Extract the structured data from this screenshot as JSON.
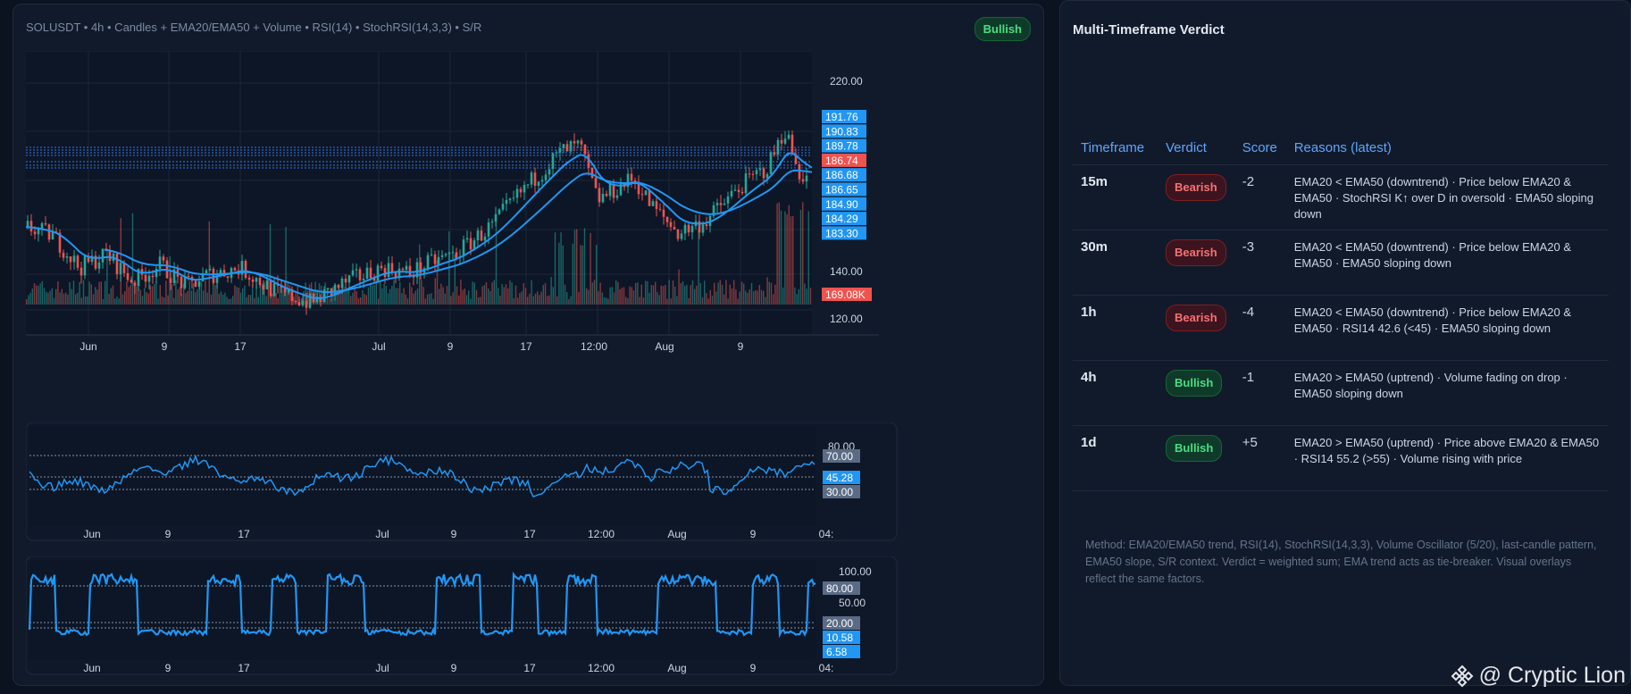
{
  "chart": {
    "title": "SOLUSDT • 4h • Candles + EMA20/EMA50 + Volume • RSI(14) • StochRSI(14,3,3) • S/R",
    "badge": "Bullish",
    "price_axis": [
      "220.00",
      "140.00",
      "120.00"
    ],
    "level_labels": [
      {
        "text": "191.76",
        "color": "#2196f3"
      },
      {
        "text": "190.83",
        "color": "#2196f3"
      },
      {
        "text": "189.78",
        "color": "#2196f3"
      },
      {
        "text": "186.74",
        "color": "#ef5350"
      },
      {
        "text": "186.68",
        "color": "#2196f3"
      },
      {
        "text": "186.65",
        "color": "#2196f3"
      },
      {
        "text": "184.90",
        "color": "#2196f3"
      },
      {
        "text": "184.29",
        "color": "#2196f3"
      },
      {
        "text": "183.30",
        "color": "#2196f3"
      }
    ],
    "volume_label": "169.08K",
    "x_ticks": [
      "Jun",
      "9",
      "17",
      "Jul",
      "9",
      "17",
      "12:00",
      "Aug",
      "9"
    ],
    "rsi": {
      "axis_top": "80.00",
      "labels": [
        "70.00",
        "45.28",
        "30.00"
      ],
      "x_ticks": [
        "Jun",
        "9",
        "17",
        "Jul",
        "9",
        "17",
        "12:00",
        "Aug",
        "9",
        "04:"
      ]
    },
    "stoch": {
      "axis_top": "100.00",
      "axis_mid": "50.00",
      "labels": [
        "80.00",
        "20.00",
        "10.58",
        "6.58"
      ],
      "x_ticks": [
        "Jun",
        "9",
        "17",
        "Jul",
        "9",
        "17",
        "12:00",
        "Aug",
        "9",
        "04:"
      ]
    },
    "colors": {
      "up": "#26a69a",
      "down": "#ef5350",
      "ema": "#2196f3"
    }
  },
  "panel": {
    "title": "Multi-Timeframe Verdict",
    "headers": [
      "Timeframe",
      "Verdict",
      "Score",
      "Reasons (latest)"
    ],
    "rows": [
      {
        "tf": "15m",
        "verdict": "Bearish",
        "score": "-2",
        "reasons": "EMA20 < EMA50 (downtrend) · Price below EMA20 & EMA50 · StochRSI K↑ over D in oversold · EMA50 sloping down"
      },
      {
        "tf": "30m",
        "verdict": "Bearish",
        "score": "-3",
        "reasons": "EMA20 < EMA50 (downtrend) · Price below EMA20 & EMA50 · EMA50 sloping down"
      },
      {
        "tf": "1h",
        "verdict": "Bearish",
        "score": "-4",
        "reasons": "EMA20 < EMA50 (downtrend) · Price below EMA20 & EMA50 · RSI14 42.6 (<45) · EMA50 sloping down"
      },
      {
        "tf": "4h",
        "verdict": "Bullish",
        "score": "-1",
        "reasons": "EMA20 > EMA50 (uptrend) · Volume fading on drop · EMA50 sloping down"
      },
      {
        "tf": "1d",
        "verdict": "Bullish",
        "score": "+5",
        "reasons": "EMA20 > EMA50 (uptrend) · Price above EMA20 & EMA50 · RSI14 55.2 (>55) · Volume rising with price"
      }
    ],
    "method": "Method: EMA20/EMA50 trend, RSI(14), StochRSI(14,3,3), Volume Oscillator (5/20), last-candle pattern, EMA50 slope, S/R context. Verdict = weighted sum; EMA trend acts as tie-breaker. Visual overlays reflect the same factors."
  },
  "watermark": "@ Cryptic Lion"
}
